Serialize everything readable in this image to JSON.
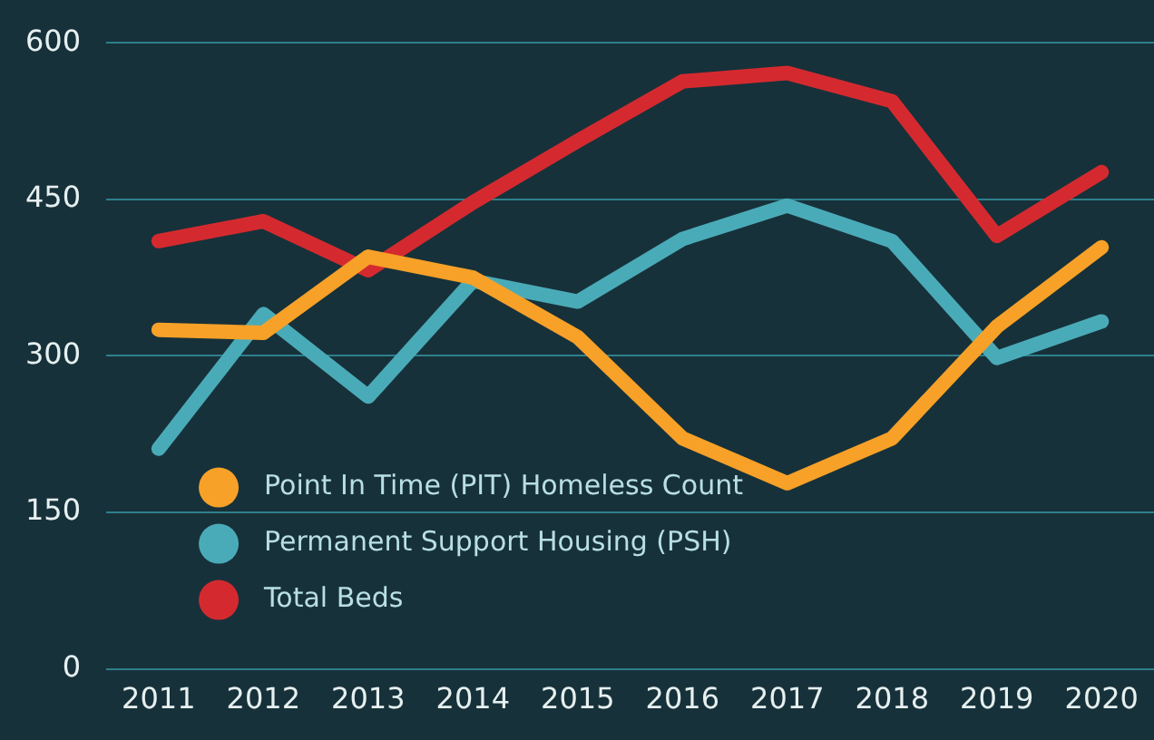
{
  "chart_data": {
    "type": "line",
    "categories": [
      "2011",
      "2012",
      "2013",
      "2014",
      "2015",
      "2016",
      "2017",
      "2018",
      "2019",
      "2020"
    ],
    "series": [
      {
        "name": "Point In Time (PIT) Homeless Count",
        "color": "#f7a128",
        "values": [
          325,
          322,
          395,
          375,
          318,
          221,
          178,
          221,
          328,
          404
        ]
      },
      {
        "name": "Permanent Support Housing (PSH)",
        "color": "#4aabb8",
        "values": [
          211,
          340,
          261,
          372,
          352,
          412,
          444,
          410,
          298,
          333
        ]
      },
      {
        "name": "Total Beds",
        "color": "#d42a2f",
        "values": [
          410,
          429,
          382,
          447,
          506,
          563,
          571,
          544,
          415,
          476
        ]
      }
    ],
    "ylim": [
      0,
      600
    ],
    "yticks": [
      0,
      150,
      300,
      450,
      600
    ],
    "grid": "y",
    "legend": "bottom left",
    "marker": "none",
    "line_style": "solid"
  }
}
